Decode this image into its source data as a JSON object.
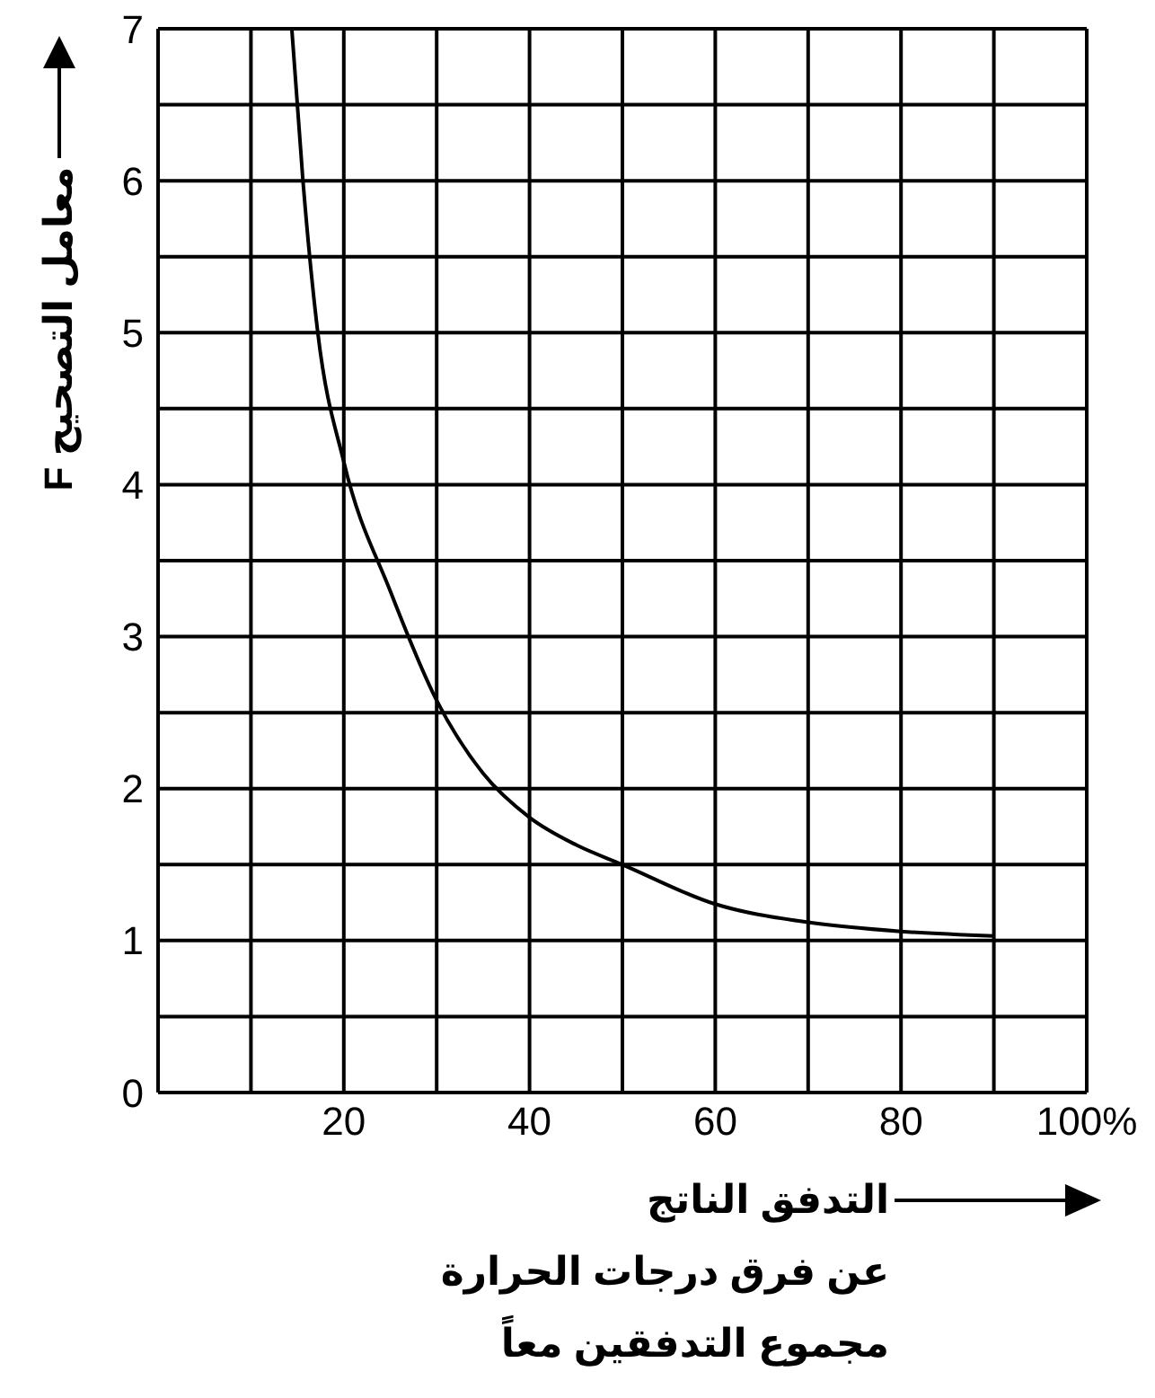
{
  "chart_data": {
    "type": "line",
    "xlabel": "التدفق الناتج\nعن فرق درجات الحرارة\nمجموع التدفقين معاً",
    "ylabel": "معامل التصحيح F",
    "series": [
      {
        "color": "#000000",
        "x": [
          14.4,
          15.6,
          17.2,
          20,
          25,
          30,
          35,
          40,
          45,
          50,
          60,
          70,
          80,
          90
        ],
        "values": [
          7,
          6,
          5,
          4.15,
          3.3,
          2.58,
          2.1,
          1.81,
          1.63,
          1.5,
          1.24,
          1.12,
          1.06,
          1.03
        ]
      }
    ],
    "xlim": [
      0,
      100
    ],
    "xticks": [
      {
        "value": 10,
        "label": null
      },
      20,
      {
        "value": 30,
        "label": null
      },
      40,
      {
        "value": 50,
        "label": null
      },
      60,
      {
        "value": 70,
        "label": null
      },
      80,
      {
        "value": 90,
        "label": null
      },
      {
        "value": 100,
        "label": "100%"
      }
    ],
    "ylim": [
      0,
      7
    ],
    "yticks": [
      0,
      {
        "value": 0.5,
        "label": null
      },
      1,
      {
        "value": 1.5,
        "label": null
      },
      2,
      {
        "value": 2.5,
        "label": null
      },
      3,
      {
        "value": 3.5,
        "label": null
      },
      4,
      {
        "value": 4.5,
        "label": null
      },
      5,
      {
        "value": 5.5,
        "label": null
      },
      6,
      {
        "value": 6.5,
        "label": null
      },
      7
    ],
    "grid": true,
    "marker": "none",
    "line_style": "solid"
  }
}
